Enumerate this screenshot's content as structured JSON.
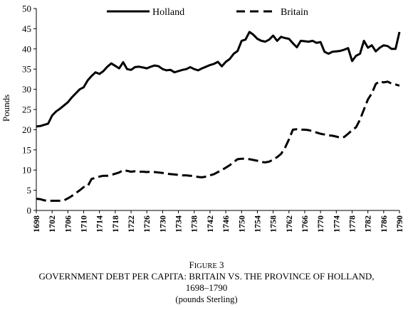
{
  "caption": {
    "figure_label_first": "F",
    "figure_label_rest": "IGURE",
    "figure_number": "3",
    "title": "GOVERNMENT DEBT PER CAPITA: BRITAIN VS. THE PROVINCE OF HOLLAND,",
    "years": "1698–1790",
    "units": "(pounds Sterling)"
  },
  "chart_data": {
    "type": "line",
    "title": "",
    "xlabel": "",
    "ylabel": "Pounds",
    "xlim": [
      1698,
      1790
    ],
    "ylim": [
      0,
      50
    ],
    "yticks": [
      0,
      5,
      10,
      15,
      20,
      25,
      30,
      35,
      40,
      45,
      50
    ],
    "xticks": [
      1698,
      1702,
      1706,
      1710,
      1714,
      1718,
      1722,
      1726,
      1730,
      1734,
      1738,
      1742,
      1746,
      1750,
      1754,
      1758,
      1762,
      1766,
      1770,
      1774,
      1778,
      1782,
      1786,
      1790
    ],
    "grid": false,
    "legend_position": "top",
    "series": [
      {
        "name": "Holland",
        "style": "solid",
        "color": "#000000",
        "x": [
          1698,
          1699,
          1700,
          1701,
          1702,
          1703,
          1704,
          1705,
          1706,
          1707,
          1708,
          1709,
          1710,
          1711,
          1712,
          1713,
          1714,
          1715,
          1716,
          1717,
          1718,
          1719,
          1720,
          1721,
          1722,
          1723,
          1724,
          1725,
          1726,
          1727,
          1728,
          1729,
          1730,
          1731,
          1732,
          1733,
          1734,
          1735,
          1736,
          1737,
          1738,
          1739,
          1740,
          1741,
          1742,
          1743,
          1744,
          1745,
          1746,
          1747,
          1748,
          1749,
          1750,
          1751,
          1752,
          1753,
          1754,
          1755,
          1756,
          1757,
          1758,
          1759,
          1760,
          1761,
          1762,
          1763,
          1764,
          1765,
          1766,
          1767,
          1768,
          1769,
          1770,
          1771,
          1772,
          1773,
          1774,
          1775,
          1776,
          1777,
          1778,
          1779,
          1780,
          1781,
          1782,
          1783,
          1784,
          1785,
          1786,
          1787,
          1788,
          1789,
          1790
        ],
        "values": [
          20.8,
          20.9,
          21.2,
          21.5,
          23.5,
          24.5,
          25.2,
          26.0,
          26.8,
          28.0,
          29.0,
          30.0,
          30.5,
          32.2,
          33.3,
          34.2,
          33.8,
          34.5,
          35.6,
          36.4,
          35.8,
          35.2,
          36.7,
          35.0,
          34.8,
          35.5,
          35.6,
          35.4,
          35.2,
          35.6,
          35.9,
          35.7,
          35.0,
          34.7,
          34.8,
          34.2,
          34.5,
          34.8,
          35.0,
          35.5,
          35.0,
          34.7,
          35.2,
          35.6,
          36.0,
          36.3,
          36.8,
          35.7,
          36.8,
          37.5,
          38.8,
          39.5,
          42.0,
          42.3,
          44.2,
          43.5,
          42.5,
          42.0,
          41.8,
          42.3,
          43.3,
          42.0,
          43.0,
          42.7,
          42.5,
          41.4,
          40.4,
          42.0,
          41.9,
          41.8,
          42.0,
          41.5,
          41.7,
          39.3,
          38.8,
          39.3,
          39.4,
          39.5,
          39.8,
          40.2,
          37.0,
          38.3,
          38.8,
          42.0,
          40.3,
          40.9,
          39.4,
          40.3,
          40.9,
          40.7,
          40.0,
          40.0,
          44.2
        ]
      },
      {
        "name": "Britain",
        "style": "dashed",
        "color": "#000000",
        "x": [
          1698,
          1699,
          1700,
          1701,
          1702,
          1703,
          1704,
          1705,
          1706,
          1707,
          1708,
          1709,
          1710,
          1711,
          1712,
          1713,
          1714,
          1715,
          1716,
          1717,
          1718,
          1719,
          1720,
          1721,
          1722,
          1723,
          1724,
          1725,
          1726,
          1727,
          1728,
          1729,
          1730,
          1731,
          1732,
          1733,
          1734,
          1735,
          1736,
          1737,
          1738,
          1739,
          1740,
          1741,
          1742,
          1743,
          1744,
          1745,
          1746,
          1747,
          1748,
          1749,
          1750,
          1751,
          1752,
          1753,
          1754,
          1755,
          1756,
          1757,
          1758,
          1759,
          1760,
          1761,
          1762,
          1763,
          1764,
          1765,
          1766,
          1767,
          1768,
          1769,
          1770,
          1771,
          1772,
          1773,
          1774,
          1775,
          1776,
          1777,
          1778,
          1779,
          1780,
          1781,
          1782,
          1783,
          1784,
          1785,
          1786,
          1787,
          1788,
          1789,
          1790
        ],
        "values": [
          2.9,
          2.8,
          2.5,
          2.4,
          2.4,
          2.4,
          2.4,
          2.5,
          3.0,
          3.6,
          4.3,
          5.0,
          5.8,
          6.0,
          7.8,
          8.1,
          8.4,
          8.6,
          8.6,
          8.8,
          9.1,
          9.4,
          10.0,
          9.8,
          9.6,
          9.7,
          9.6,
          9.6,
          9.5,
          9.6,
          9.5,
          9.4,
          9.3,
          9.1,
          9.0,
          8.9,
          8.8,
          8.7,
          8.7,
          8.6,
          8.5,
          8.3,
          8.2,
          8.4,
          8.7,
          9.0,
          9.5,
          10.0,
          10.6,
          11.2,
          12.0,
          12.7,
          12.8,
          12.8,
          12.7,
          12.5,
          12.3,
          12.0,
          11.9,
          12.1,
          12.6,
          13.2,
          14.0,
          15.5,
          17.6,
          20.0,
          20.1,
          20.0,
          20.0,
          19.9,
          19.6,
          19.3,
          19.0,
          18.8,
          18.6,
          18.5,
          18.3,
          18.0,
          18.2,
          19.0,
          19.9,
          20.6,
          22.5,
          25.0,
          27.5,
          29.0,
          31.3,
          32.0,
          31.7,
          31.9,
          31.4,
          31.2,
          30.9
        ]
      }
    ]
  }
}
